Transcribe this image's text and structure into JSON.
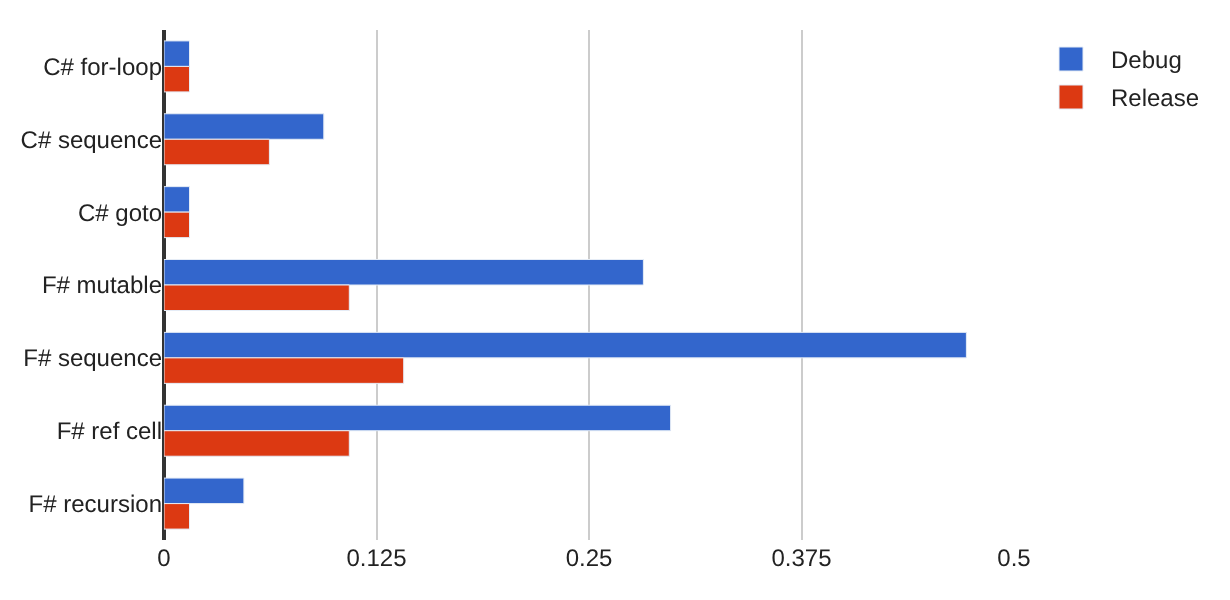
{
  "chart_data": {
    "type": "bar",
    "orientation": "horizontal",
    "categories": [
      "C# for-loop",
      "C# sequence",
      "C# goto",
      "F# mutable",
      "F# sequence",
      "F# ref cell",
      "F# recursion"
    ],
    "series": [
      {
        "name": "Debug",
        "color": "#3366cc",
        "values": [
          0.015,
          0.094,
          0.015,
          0.282,
          0.472,
          0.298,
          0.047
        ]
      },
      {
        "name": "Release",
        "color": "#dc3912",
        "values": [
          0.015,
          0.062,
          0.015,
          0.109,
          0.141,
          0.109,
          0.015
        ]
      }
    ],
    "xlim": [
      0,
      0.5
    ],
    "xticks": [
      0,
      0.125,
      0.25,
      0.375,
      0.5
    ],
    "grid": "x",
    "legend": "top right"
  }
}
